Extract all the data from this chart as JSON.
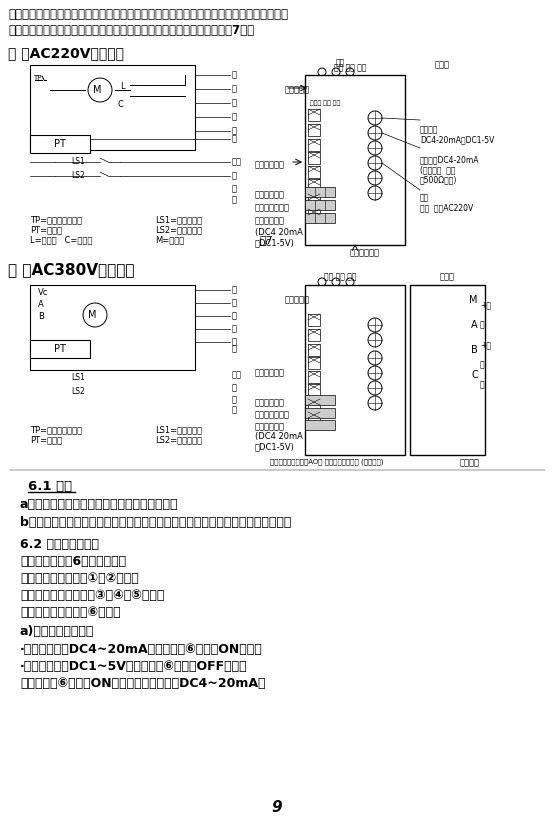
{
  "background_color": "#ffffff",
  "page_number": "9",
  "top_text_lines": [
    "及安装过程中可能发生激烈的振动、撞击等现象，因此在运行之前，应先确认其动作是否准",
    "确，如有偏差或不符合现在的要求，则应按以下方法步骤重新调整（见图7）。"
  ],
  "section_single_phase": "单 相AC220V接线图：",
  "section_three_phase": "三 相AC380V接线图：",
  "section_61_title": "6.1 配线",
  "section_61_a": "a）松开护罩紧固螺栓，向上垂直地折卸护罩。",
  "section_61_b": "b）外部配线与控制器上接线端子的连接，按控制器侧面上的接线示意图的要求。",
  "section_62_title": "6.2 状态开关的设定",
  "section_62_line1": "控制器上共设有6只状态开关：",
  "section_62_line2": "正反动作状态由开关①、②设定：",
  "section_62_line3": "断信号动作状态由开关③、④、⑤设定：",
  "section_62_line4": "输入信号状态由开关⑥设定。",
  "section_62_a_title": "a)输入信号状态设定",
  "section_62_a_bullet1": "·当输入信号为DC4~20mA时，将开关⑥向右拨ON（通）",
  "section_62_a_bullet2": "·当输入信号为DC1~5V时，将开关⑥向左拨OFF（断）",
  "section_62_a_bullet3": "＊图中开关⑥向右拨ON（通），输入信号为DC4~20mA。"
}
